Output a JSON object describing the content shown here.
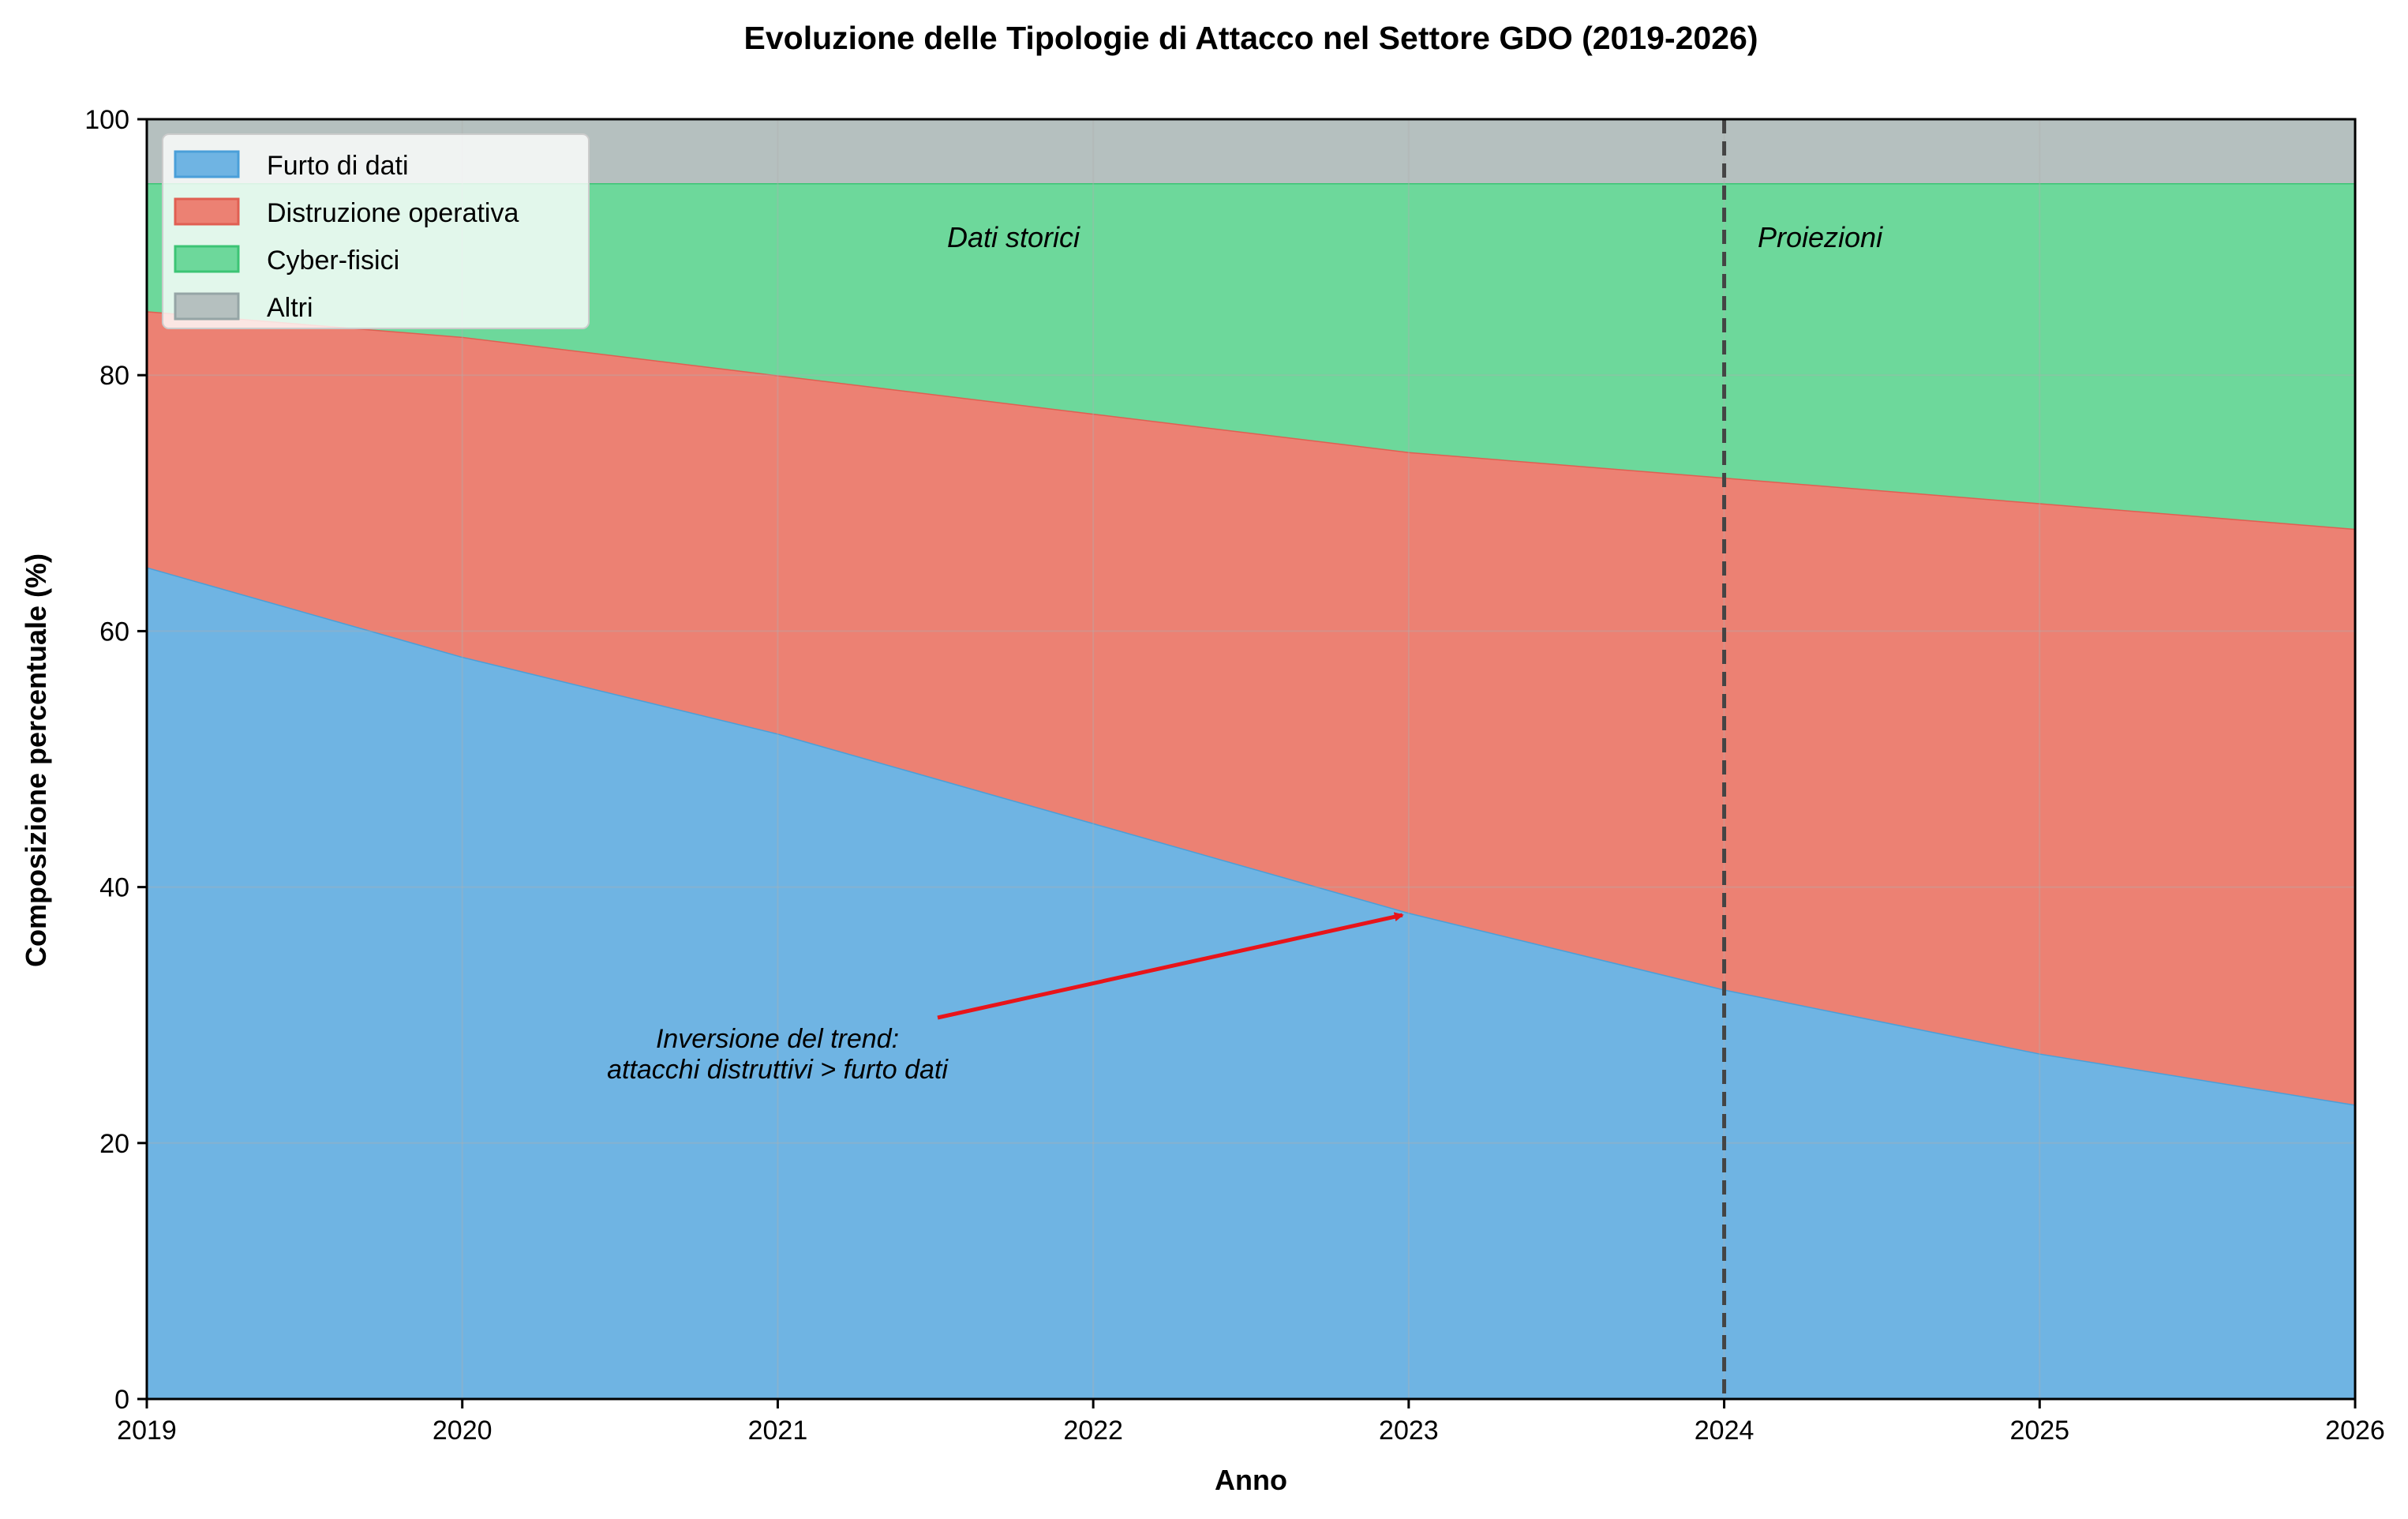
{
  "chart_data": {
    "type": "area",
    "stacked": true,
    "title": "Evoluzione delle Tipologie di Attacco nel Settore GDO (2019-2026)",
    "xlabel": "Anno",
    "ylabel": "Composizione percentuale (%)",
    "x": [
      2019,
      2020,
      2021,
      2022,
      2023,
      2024,
      2025,
      2026
    ],
    "x_ticks": [
      "2019",
      "2020",
      "2021",
      "2022",
      "2023",
      "2024",
      "2025",
      "2026"
    ],
    "y_ticks": [
      "0",
      "20",
      "40",
      "60",
      "80",
      "100"
    ],
    "xlim": [
      2019,
      2026
    ],
    "ylim": [
      0,
      100
    ],
    "grid": true,
    "legend_position": "top-left",
    "series": [
      {
        "name": "Furto di dati",
        "color": "#6fb4e3",
        "edge": "#4a9fd9",
        "values": [
          65,
          58,
          52,
          45,
          38,
          32,
          27,
          23
        ]
      },
      {
        "name": "Distruzione operativa",
        "color": "#ec8173",
        "edge": "#e05f52",
        "values": [
          20,
          25,
          28,
          32,
          36,
          40,
          43,
          45
        ]
      },
      {
        "name": "Cyber-fisici",
        "color": "#6dd89b",
        "edge": "#3cc474",
        "values": [
          10,
          12,
          15,
          18,
          21,
          23,
          25,
          27
        ]
      },
      {
        "name": "Altri",
        "color": "#b5c0bf",
        "edge": "#95a5a6",
        "values": [
          5,
          5,
          5,
          5,
          5,
          5,
          5,
          5
        ]
      }
    ],
    "divider": {
      "x": 2024,
      "color": "#444444"
    },
    "regions": {
      "left_label": "Dati storici",
      "right_label": "Proiezioni"
    },
    "annotation": {
      "line1": "Inversione del trend:",
      "line2": "attacchi distruttivi > furto dati",
      "arrow_target_x": 2023,
      "arrow_target_y": 38,
      "arrow_color": "#e8141a"
    }
  }
}
